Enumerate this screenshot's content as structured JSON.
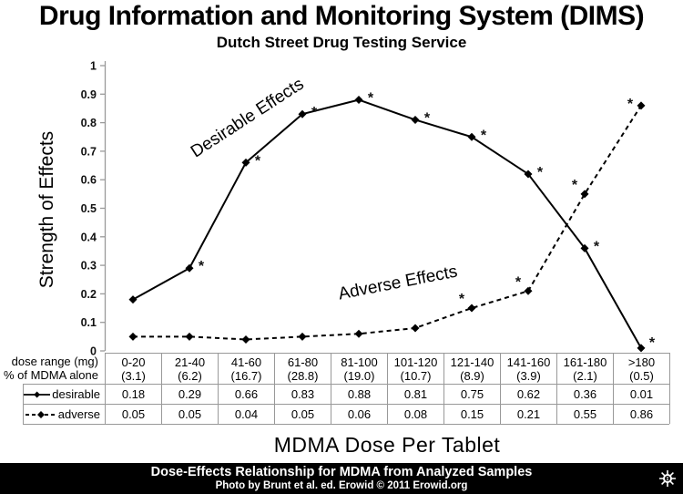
{
  "header": {
    "title": "Drug Information and Monitoring System (DIMS)",
    "subtitle": "Dutch Street Drug Testing Service"
  },
  "chart_data": {
    "type": "line",
    "title": "Drug Information and Monitoring System (DIMS)",
    "subtitle": "Dutch Street Drug Testing Service",
    "ylabel": "Strength of Effects",
    "xlabel": "MDMA Dose Per Tablet",
    "ylim": [
      0,
      1
    ],
    "ytick_step": 0.1,
    "yticks": [
      "0",
      "0.1",
      "0.2",
      "0.3",
      "0.4",
      "0.5",
      "0.6",
      "0.7",
      "0.8",
      "0.9",
      "1"
    ],
    "grid": false,
    "legend_position": "table-left",
    "categories": [
      "0-20",
      "21-40",
      "41-60",
      "61-80",
      "81-100",
      "101-120",
      "121-140",
      "141-160",
      "161-180",
      ">180"
    ],
    "category_pct_of_mdma_alone": [
      3.1,
      6.2,
      16.7,
      28.8,
      19.0,
      10.7,
      8.9,
      3.9,
      2.1,
      0.5
    ],
    "row_header": {
      "line1": "dose range (mg)",
      "line2": "% of MDMA alone"
    },
    "series": [
      {
        "name": "desirable",
        "label": "Desirable Effects",
        "line_style": "solid",
        "marker": "diamond",
        "values": [
          0.18,
          0.29,
          0.66,
          0.83,
          0.88,
          0.81,
          0.75,
          0.62,
          0.36,
          0.01
        ],
        "significant_asterisk": [
          false,
          true,
          true,
          true,
          true,
          true,
          true,
          true,
          true,
          true
        ]
      },
      {
        "name": "adverse",
        "label": "Adverse Effects",
        "line_style": "dashed",
        "marker": "diamond",
        "values": [
          0.05,
          0.05,
          0.04,
          0.05,
          0.06,
          0.08,
          0.15,
          0.21,
          0.55,
          0.86
        ],
        "significant_asterisk": [
          false,
          false,
          false,
          false,
          false,
          false,
          true,
          true,
          true,
          true
        ]
      }
    ]
  },
  "footer": {
    "caption": "Dose-Effects Relationship for MDMA from Analyzed Samples",
    "credit": "Photo by Brunt et al. ed. Erowid © 2011 Erowid.org",
    "icon": "sun-icon"
  }
}
